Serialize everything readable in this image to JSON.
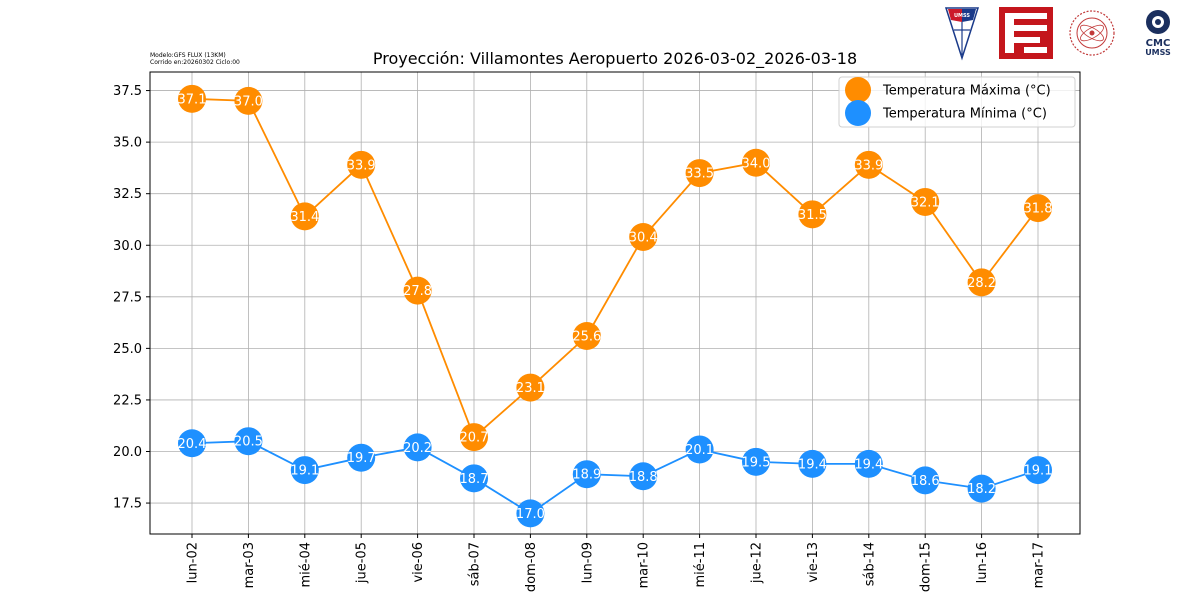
{
  "meta": {
    "model": "Modelo:GFS FLUX (13KM)",
    "run": "Corrido en:20260302 Ciclo:00"
  },
  "logos": {
    "umss_shield": "UMSS",
    "cmc_line1": "CMC",
    "cmc_line2": "UMSS"
  },
  "chart_data": {
    "type": "line",
    "title": "Proyección: Villamontes Aeropuerto 2026-03-02_2026-03-18",
    "xlabel": "",
    "ylabel": "",
    "categories": [
      "lun-02",
      "mar-03",
      "mié-04",
      "jue-05",
      "vie-06",
      "sáb-07",
      "dom-08",
      "lun-09",
      "mar-10",
      "mié-11",
      "jue-12",
      "vie-13",
      "sáb-14",
      "dom-15",
      "lun-16",
      "mar-17"
    ],
    "ylim": [
      16.0,
      38.4
    ],
    "yticks": [
      17.5,
      20.0,
      22.5,
      25.0,
      27.5,
      30.0,
      32.5,
      35.0,
      37.5
    ],
    "yticklabels": [
      "17.5",
      "20.0",
      "22.5",
      "25.0",
      "27.5",
      "30.0",
      "32.5",
      "35.0",
      "37.5"
    ],
    "grid": true,
    "legend_position": "top-right",
    "series": [
      {
        "name": "Temperatura Máxima  (°C)",
        "color": "#ff8c00",
        "values": [
          37.1,
          37.0,
          31.4,
          33.9,
          27.8,
          20.7,
          23.1,
          25.6,
          30.4,
          33.5,
          34.0,
          31.5,
          33.9,
          32.1,
          28.2,
          31.8
        ],
        "labels": [
          "37.1",
          "37.0",
          "31.4",
          "33.9",
          "27.8",
          "20.7",
          "23.1",
          "25.6",
          "30.4",
          "33.5",
          "34.0",
          "31.5",
          "33.9",
          "32.1",
          "28.2",
          "31.8"
        ]
      },
      {
        "name": "Temperatura Mínima  (°C)",
        "color": "#1e90ff",
        "values": [
          20.4,
          20.5,
          19.1,
          19.7,
          20.2,
          18.7,
          17.0,
          18.9,
          18.8,
          20.1,
          19.5,
          19.4,
          19.4,
          18.6,
          18.2,
          19.1
        ],
        "labels": [
          "20.4",
          "20.5",
          "19.1",
          "19.7",
          "20.2",
          "18.7",
          "17.0",
          "18.9",
          "18.8",
          "20.1",
          "19.5",
          "19.4",
          "19.4",
          "18.6",
          "18.2",
          "19.1"
        ]
      }
    ]
  }
}
